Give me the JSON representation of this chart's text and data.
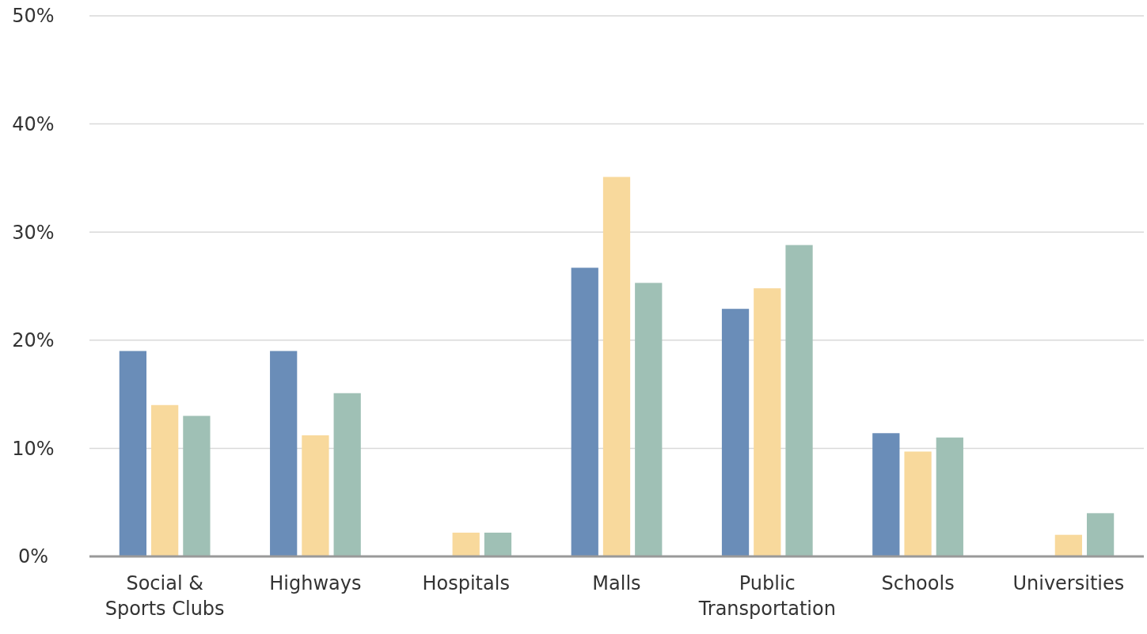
{
  "chart_data": {
    "type": "bar",
    "categories": [
      "Social & Sports Clubs",
      "Highways",
      "Hospitals",
      "Malls",
      "Public Transportation",
      "Schools",
      "Universities"
    ],
    "series": [
      {
        "color": "#6a8db8",
        "values": [
          19,
          19,
          0,
          26.7,
          22.9,
          11.4,
          0
        ]
      },
      {
        "color": "#f8d99c",
        "values": [
          14,
          11.2,
          2.2,
          35.1,
          24.8,
          9.7,
          2
        ]
      },
      {
        "color": "#9fc0b5",
        "values": [
          13,
          15.1,
          2.2,
          25.3,
          28.8,
          11,
          4
        ]
      }
    ],
    "ylim": [
      0,
      50
    ],
    "yticks": [
      {
        "value": 0,
        "label": "0%"
      },
      {
        "value": 10,
        "label": "10%"
      },
      {
        "value": 20,
        "label": "20%"
      },
      {
        "value": 30,
        "label": "30%"
      },
      {
        "value": 40,
        "label": "40%"
      },
      {
        "value": 50,
        "label": "50%"
      }
    ],
    "grid": "y"
  }
}
